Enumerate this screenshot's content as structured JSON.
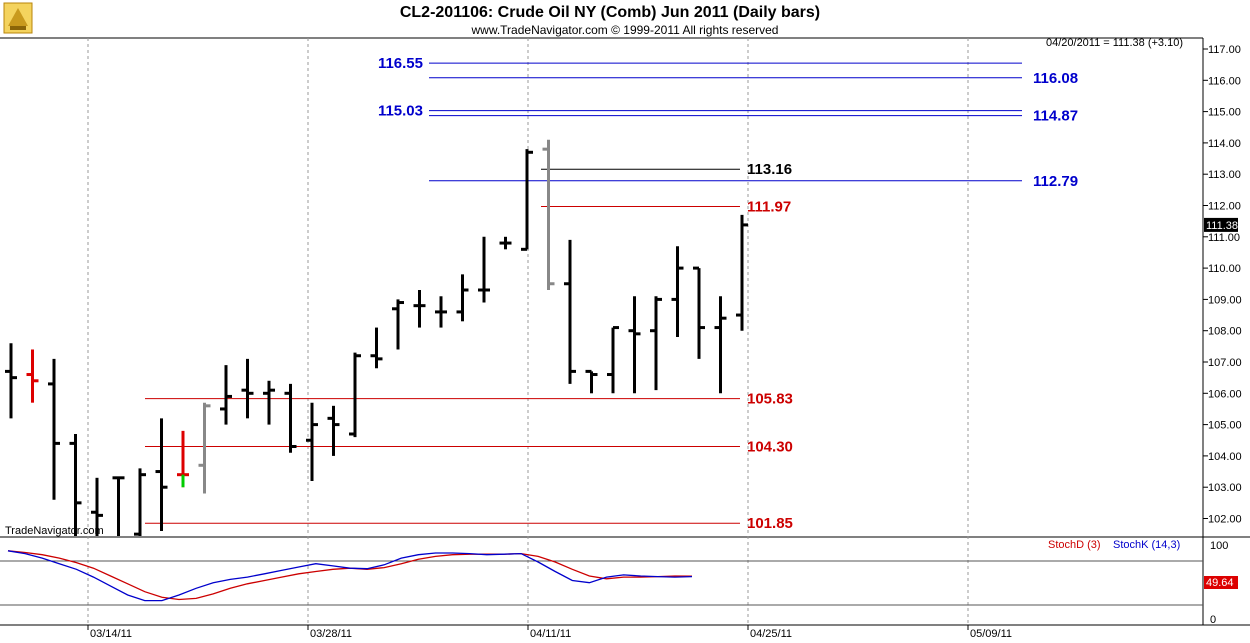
{
  "header": {
    "title": "CL2-201106:  Crude Oil NY (Comb) Jun 2011  (Daily bars)",
    "subtitle": "www.TradeNavigator.com © 1999-2011 All rights reserved",
    "last_quote": "04/20/2011 = 111.38 (+3.10)",
    "watermark": "TradeNavigator.com"
  },
  "colors": {
    "up_bar": "#000000",
    "red_bar": "#dd0000",
    "grey_bar": "#888888",
    "green_tick": "#00cc00",
    "red_level": "#cc0000",
    "blue_level": "#0000cc",
    "stoch_d": "#cc0000",
    "stoch_k": "#0000cc"
  },
  "chart_data": [
    {
      "type": "ohlc",
      "title": "CL2-201106:  Crude Oil NY (Comb) Jun 2011  (Daily bars)",
      "ylim": [
        101.3,
        117.3
      ],
      "yticks": [
        "117.00",
        "116.00",
        "115.00",
        "114.00",
        "113.00",
        "112.00",
        "111.00",
        "110.00",
        "109.00",
        "108.00",
        "107.00",
        "106.00",
        "105.00",
        "104.00",
        "103.00",
        "102.00"
      ],
      "x_tick_labels": [
        "03/14/11",
        "03/28/11",
        "04/11/11",
        "04/25/11",
        "05/09/11"
      ],
      "last_price_label": "111.38",
      "bars": [
        {
          "o": 106.7,
          "h": 107.6,
          "l": 105.2,
          "c": 106.5,
          "color": "up_bar"
        },
        {
          "o": 106.6,
          "h": 107.4,
          "l": 105.7,
          "c": 106.4,
          "color": "red_bar"
        },
        {
          "o": 106.3,
          "h": 107.1,
          "l": 102.6,
          "c": 104.4,
          "color": "up_bar"
        },
        {
          "o": 104.4,
          "h": 104.7,
          "l": 101.3,
          "c": 102.5,
          "color": "up_bar"
        },
        {
          "o": 102.2,
          "h": 103.3,
          "l": 101.3,
          "c": 102.1,
          "color": "up_bar"
        },
        {
          "o": 103.3,
          "h": 103.3,
          "l": 101.3,
          "c": 103.3,
          "color": "up_bar"
        },
        {
          "o": 101.5,
          "h": 103.6,
          "l": 101.3,
          "c": 103.4,
          "color": "up_bar"
        },
        {
          "o": 103.5,
          "h": 105.2,
          "l": 101.6,
          "c": 103.0,
          "color": "up_bar"
        },
        {
          "o": 103.4,
          "h": 104.8,
          "l": 103.0,
          "c": 103.4,
          "color": "red_bar"
        },
        {
          "o": 103.7,
          "h": 105.7,
          "l": 102.8,
          "c": 105.6,
          "color": "grey_bar"
        },
        {
          "o": 105.5,
          "h": 106.9,
          "l": 105.0,
          "c": 105.9,
          "color": "up_bar"
        },
        {
          "o": 106.1,
          "h": 107.1,
          "l": 105.2,
          "c": 106.0,
          "color": "up_bar"
        },
        {
          "o": 106.0,
          "h": 106.4,
          "l": 105.0,
          "c": 106.1,
          "color": "up_bar"
        },
        {
          "o": 106.0,
          "h": 106.3,
          "l": 104.1,
          "c": 104.3,
          "color": "up_bar"
        },
        {
          "o": 104.5,
          "h": 105.7,
          "l": 103.2,
          "c": 105.0,
          "color": "up_bar"
        },
        {
          "o": 105.2,
          "h": 105.6,
          "l": 104.0,
          "c": 105.0,
          "color": "up_bar"
        },
        {
          "o": 104.7,
          "h": 107.3,
          "l": 104.6,
          "c": 107.2,
          "color": "up_bar"
        },
        {
          "o": 107.2,
          "h": 108.1,
          "l": 106.8,
          "c": 107.1,
          "color": "up_bar"
        },
        {
          "o": 108.7,
          "h": 109.0,
          "l": 107.4,
          "c": 108.9,
          "color": "up_bar"
        },
        {
          "o": 108.8,
          "h": 109.3,
          "l": 108.1,
          "c": 108.8,
          "color": "up_bar"
        },
        {
          "o": 108.6,
          "h": 109.1,
          "l": 108.1,
          "c": 108.6,
          "color": "up_bar"
        },
        {
          "o": 108.6,
          "h": 109.8,
          "l": 108.3,
          "c": 109.3,
          "color": "up_bar"
        },
        {
          "o": 109.3,
          "h": 111.0,
          "l": 108.9,
          "c": 109.3,
          "color": "up_bar"
        },
        {
          "o": 110.8,
          "h": 111.0,
          "l": 110.6,
          "c": 110.8,
          "color": "up_bar"
        },
        {
          "o": 110.6,
          "h": 113.8,
          "l": 110.6,
          "c": 113.7,
          "color": "up_bar"
        },
        {
          "o": 113.8,
          "h": 114.1,
          "l": 109.3,
          "c": 109.5,
          "color": "grey_bar"
        },
        {
          "o": 109.5,
          "h": 110.9,
          "l": 106.3,
          "c": 106.7,
          "color": "up_bar"
        },
        {
          "o": 106.7,
          "h": 106.7,
          "l": 106.0,
          "c": 106.6,
          "color": "up_bar"
        },
        {
          "o": 106.6,
          "h": 108.1,
          "l": 106.0,
          "c": 108.1,
          "color": "up_bar"
        },
        {
          "o": 108.0,
          "h": 109.1,
          "l": 106.0,
          "c": 107.9,
          "color": "up_bar"
        },
        {
          "o": 108.0,
          "h": 109.1,
          "l": 106.1,
          "c": 109.0,
          "color": "up_bar"
        },
        {
          "o": 109.0,
          "h": 110.7,
          "l": 107.8,
          "c": 110.0,
          "color": "up_bar"
        },
        {
          "o": 110.0,
          "h": 110.0,
          "l": 107.1,
          "c": 108.1,
          "color": "up_bar"
        },
        {
          "o": 108.1,
          "h": 109.1,
          "l": 106.0,
          "c": 108.4,
          "color": "up_bar"
        },
        {
          "o": 108.5,
          "h": 111.7,
          "l": 108.0,
          "c": 111.38,
          "color": "up_bar"
        }
      ],
      "levels": [
        {
          "value": 116.55,
          "label": "116.55",
          "color": "blue_level",
          "label_side": "left"
        },
        {
          "value": 116.08,
          "label": "116.08",
          "color": "blue_level",
          "label_side": "right"
        },
        {
          "value": 115.03,
          "label": "115.03",
          "color": "blue_level",
          "label_side": "left"
        },
        {
          "value": 114.87,
          "label": "114.87",
          "color": "blue_level",
          "label_side": "right"
        },
        {
          "value": 113.16,
          "label": "113.16",
          "color": "up_bar",
          "label_side": "mid"
        },
        {
          "value": 112.79,
          "label": "112.79",
          "color": "blue_level",
          "label_side": "right"
        },
        {
          "value": 111.97,
          "label": "111.97",
          "color": "red_level",
          "label_side": "mid"
        },
        {
          "value": 105.83,
          "label": "105.83",
          "color": "red_level",
          "label_side": "mid"
        },
        {
          "value": 104.3,
          "label": "104.30",
          "color": "red_level",
          "label_side": "mid"
        },
        {
          "value": 101.85,
          "label": "101.85",
          "color": "red_level",
          "label_side": "mid"
        }
      ]
    },
    {
      "type": "line",
      "ylim": [
        0,
        100
      ],
      "yticks": [
        "100",
        "0"
      ],
      "legend": [
        "StochD (3)",
        "StochK (14,3)"
      ],
      "last_value_label": "49.64",
      "series": [
        {
          "name": "StochD (3)",
          "color": "stoch_d",
          "values": [
            95,
            92,
            88,
            82,
            74,
            64,
            50,
            36,
            22,
            12,
            8,
            10,
            18,
            28,
            36,
            42,
            48,
            54,
            58,
            62,
            64,
            62,
            65,
            72,
            80,
            85,
            88,
            89,
            89,
            89,
            90,
            85,
            75,
            62,
            50,
            45,
            48,
            48,
            49,
            50,
            49.64
          ]
        },
        {
          "name": "StochK (14,3)",
          "color": "stoch_k",
          "values": [
            95,
            90,
            82,
            72,
            62,
            48,
            32,
            16,
            6,
            6,
            16,
            28,
            38,
            44,
            48,
            54,
            60,
            66,
            72,
            68,
            64,
            63,
            70,
            82,
            88,
            91,
            91,
            90,
            88,
            89,
            90,
            75,
            58,
            42,
            38,
            48,
            52,
            50,
            49,
            48,
            49
          ]
        }
      ]
    }
  ]
}
